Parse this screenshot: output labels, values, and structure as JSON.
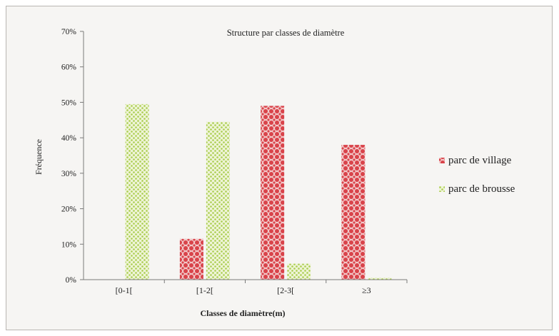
{
  "chart_data": {
    "type": "bar",
    "title": "Structure par classes de diamètre",
    "xlabel": "Classes de diamètre(m)",
    "ylabel": "Fréquence",
    "categories": [
      "[0-1[",
      "[1-2[",
      "[2-3[",
      "≥3"
    ],
    "series": [
      {
        "name": "parc de village",
        "values": [
          0,
          11.5,
          49,
          38
        ],
        "color": "#d9434a"
      },
      {
        "name": "parc de brousse",
        "values": [
          49.5,
          44.5,
          4.5,
          0.5
        ],
        "color": "#b5d35a"
      }
    ],
    "ylim": [
      0,
      70
    ],
    "yticks": [
      "0%",
      "10%",
      "20%",
      "30%",
      "40%",
      "50%",
      "60%",
      "70%"
    ],
    "grid": false,
    "legend_position": "right"
  }
}
